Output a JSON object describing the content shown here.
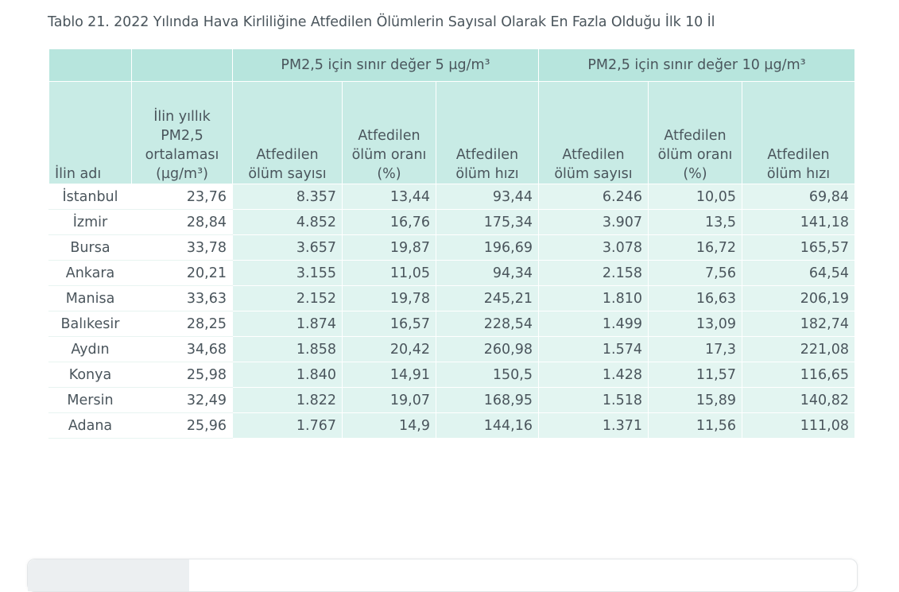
{
  "caption": "Tablo 21. 2022 Yılında Hava Kirliliğine Atfedilen Ölümlerin Sayısal Olarak En Fazla Olduğu İlk 10 İl",
  "groups": {
    "limit5": "PM2,5 için sınır değer 5 µg/m³",
    "limit10": "PM2,5 için sınır değer 10 µg/m³"
  },
  "headers": {
    "city": "İlin adı",
    "avg": "İlin yıllık PM2,5 ortalaması (µg/m³)",
    "deaths": "Atfedilen ölüm sayısı",
    "ratio": "Atfedilen ölüm oranı (%)",
    "rate": "Atfedilen ölüm hızı"
  },
  "colors": {
    "header_band": "#b7e5dd",
    "subheader_band": "#c8ebe5",
    "value_band": "#e0f4f0"
  },
  "rows": [
    {
      "city": "İstanbul",
      "avg": "23,76",
      "d5": "8.357",
      "r5": "13,44",
      "h5": "93,44",
      "d10": "6.246",
      "r10": "10,05",
      "h10": "69,84"
    },
    {
      "city": "İzmir",
      "avg": "28,84",
      "d5": "4.852",
      "r5": "16,76",
      "h5": "175,34",
      "d10": "3.907",
      "r10": "13,5",
      "h10": "141,18"
    },
    {
      "city": "Bursa",
      "avg": "33,78",
      "d5": "3.657",
      "r5": "19,87",
      "h5": "196,69",
      "d10": "3.078",
      "r10": "16,72",
      "h10": "165,57"
    },
    {
      "city": "Ankara",
      "avg": "20,21",
      "d5": "3.155",
      "r5": "11,05",
      "h5": "94,34",
      "d10": "2.158",
      "r10": "7,56",
      "h10": "64,54"
    },
    {
      "city": "Manisa",
      "avg": "33,63",
      "d5": "2.152",
      "r5": "19,78",
      "h5": "245,21",
      "d10": "1.810",
      "r10": "16,63",
      "h10": "206,19"
    },
    {
      "city": "Balıkesir",
      "avg": "28,25",
      "d5": "1.874",
      "r5": "16,57",
      "h5": "228,54",
      "d10": "1.499",
      "r10": "13,09",
      "h10": "182,74"
    },
    {
      "city": "Aydın",
      "avg": "34,68",
      "d5": "1.858",
      "r5": "20,42",
      "h5": "260,98",
      "d10": "1.574",
      "r10": "17,3",
      "h10": "221,08"
    },
    {
      "city": "Konya",
      "avg": "25,98",
      "d5": "1.840",
      "r5": "14,91",
      "h5": "150,5",
      "d10": "1.428",
      "r10": "11,57",
      "h10": "116,65"
    },
    {
      "city": "Mersin",
      "avg": "32,49",
      "d5": "1.822",
      "r5": "19,07",
      "h5": "168,95",
      "d10": "1.518",
      "r10": "15,89",
      "h10": "140,82"
    },
    {
      "city": "Adana",
      "avg": "25,96",
      "d5": "1.767",
      "r5": "14,9",
      "h5": "144,16",
      "d10": "1.371",
      "r10": "11,56",
      "h10": "111,08"
    }
  ]
}
